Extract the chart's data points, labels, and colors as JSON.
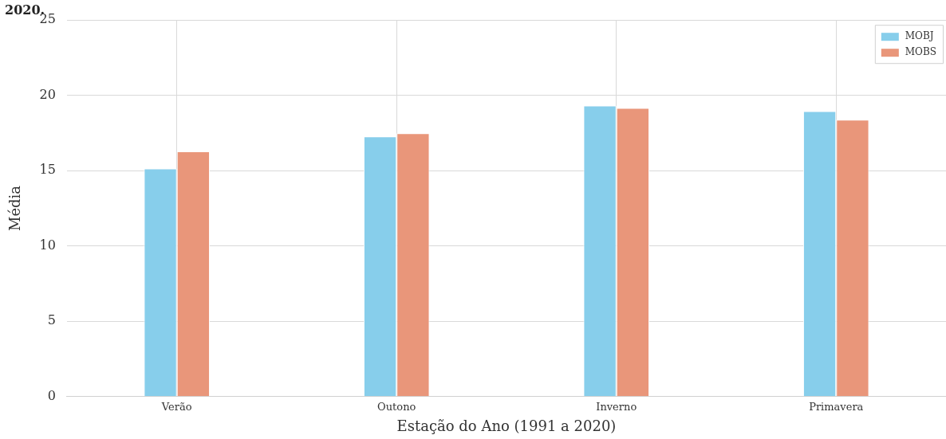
{
  "chart_data": {
    "type": "bar",
    "title": "2020.",
    "xlabel": "Estação do Ano (1991 a 2020)",
    "ylabel": "Média",
    "categories": [
      "Verão",
      "Outono",
      "Inverno",
      "Primavera"
    ],
    "series": [
      {
        "name": "MOBJ",
        "color": "#87ceeb",
        "values": [
          15.15,
          17.28,
          19.33,
          18.95
        ]
      },
      {
        "name": "MOBS",
        "color": "#e9967a",
        "values": [
          16.28,
          17.48,
          19.17,
          18.39
        ]
      }
    ],
    "ylim": [
      0,
      25
    ],
    "yticks": [
      0,
      5,
      10,
      15,
      20,
      25
    ],
    "grid": true,
    "legend": "top right"
  }
}
